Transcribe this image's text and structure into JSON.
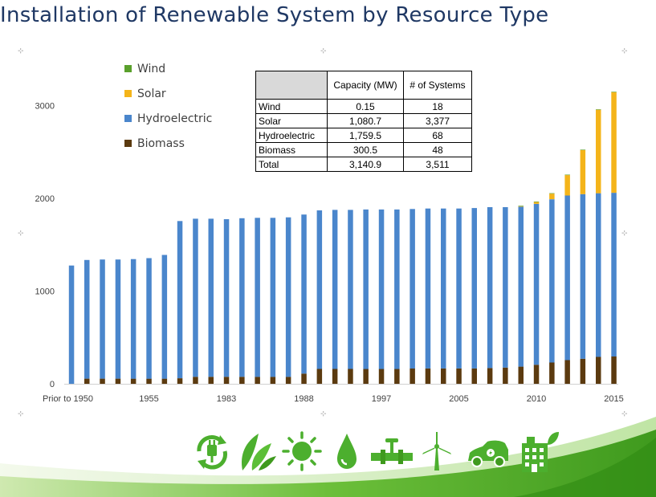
{
  "title": "Installation of Renewable System by Resource Type",
  "colors": {
    "wind": "#5aa02c",
    "solar": "#f4b41a",
    "hydro": "#4a86cc",
    "biomass": "#5b3a0f",
    "title": "#1f3864",
    "icon_green": "#4caf2e"
  },
  "legend": [
    {
      "name": "Wind",
      "color": "#5aa02c"
    },
    {
      "name": "Solar",
      "color": "#f4b41a"
    },
    {
      "name": "Hydroelectric",
      "color": "#4a86cc"
    },
    {
      "name": "Biomass",
      "color": "#5b3a0f"
    }
  ],
  "table": {
    "headers": [
      "",
      "Capacity (MW)",
      "# of Systems"
    ],
    "rows": [
      [
        "Wind",
        "0.15",
        "18"
      ],
      [
        "Solar",
        "1,080.7",
        "3,377"
      ],
      [
        "Hydroelectric",
        "1,759.5",
        "68"
      ],
      [
        "Biomass",
        "300.5",
        "48"
      ],
      [
        "Total",
        "3,140.9",
        "3,511"
      ]
    ]
  },
  "icons": [
    "recycle-plug-icon",
    "leaves-icon",
    "sun-icon",
    "water-drop-icon",
    "pipeline-icon",
    "wind-turbine-icon",
    "electric-car-icon",
    "green-building-icon"
  ],
  "chart_data": {
    "type": "bar",
    "stacked": true,
    "ylim": [
      0,
      3200
    ],
    "yticks": [
      0,
      1000,
      2000,
      3000
    ],
    "x_tick_labels": [
      {
        "index": 0,
        "label": "Prior to 1950"
      },
      {
        "index": 5,
        "label": "1955"
      },
      {
        "index": 10,
        "label": "1983"
      },
      {
        "index": 15,
        "label": "1988"
      },
      {
        "index": 20,
        "label": "1997"
      },
      {
        "index": 25,
        "label": "2005"
      },
      {
        "index": 30,
        "label": "2010"
      },
      {
        "index": 35,
        "label": "2015"
      }
    ],
    "bar_count": 36,
    "legend_placement": "top-left",
    "grid": false,
    "series": [
      {
        "name": "Biomass",
        "color": "#5b3a0f",
        "values": [
          0,
          55,
          55,
          55,
          55,
          55,
          55,
          60,
          75,
          75,
          75,
          75,
          75,
          75,
          75,
          110,
          160,
          160,
          160,
          160,
          160,
          160,
          165,
          165,
          165,
          165,
          165,
          170,
          175,
          185,
          205,
          230,
          255,
          270,
          290,
          295
        ]
      },
      {
        "name": "Hydroelectric",
        "color": "#4a86cc",
        "values": [
          1275,
          1280,
          1285,
          1285,
          1290,
          1300,
          1335,
          1695,
          1705,
          1705,
          1700,
          1710,
          1715,
          1715,
          1720,
          1715,
          1710,
          1715,
          1715,
          1720,
          1720,
          1720,
          1720,
          1725,
          1725,
          1725,
          1730,
          1735,
          1730,
          1725,
          1735,
          1760,
          1775,
          1775,
          1765,
          1765
        ]
      },
      {
        "name": "Solar",
        "color": "#f4b41a",
        "values": [
          0,
          0,
          0,
          0,
          0,
          0,
          0,
          0,
          0,
          0,
          0,
          0,
          0,
          0,
          0,
          0,
          0,
          0,
          0,
          0,
          0,
          0,
          0,
          0,
          0,
          0,
          0,
          0,
          0,
          5,
          20,
          60,
          220,
          475,
          900,
          1085
        ]
      },
      {
        "name": "Wind",
        "color": "#5aa02c",
        "values": [
          0,
          0,
          0,
          0,
          0,
          0,
          0,
          0,
          0,
          0,
          0,
          0,
          0,
          0,
          0,
          0,
          0,
          0,
          0,
          0,
          0,
          0,
          0,
          0,
          0,
          0,
          0,
          0,
          0,
          5,
          5,
          5,
          5,
          5,
          5,
          5
        ]
      }
    ]
  }
}
